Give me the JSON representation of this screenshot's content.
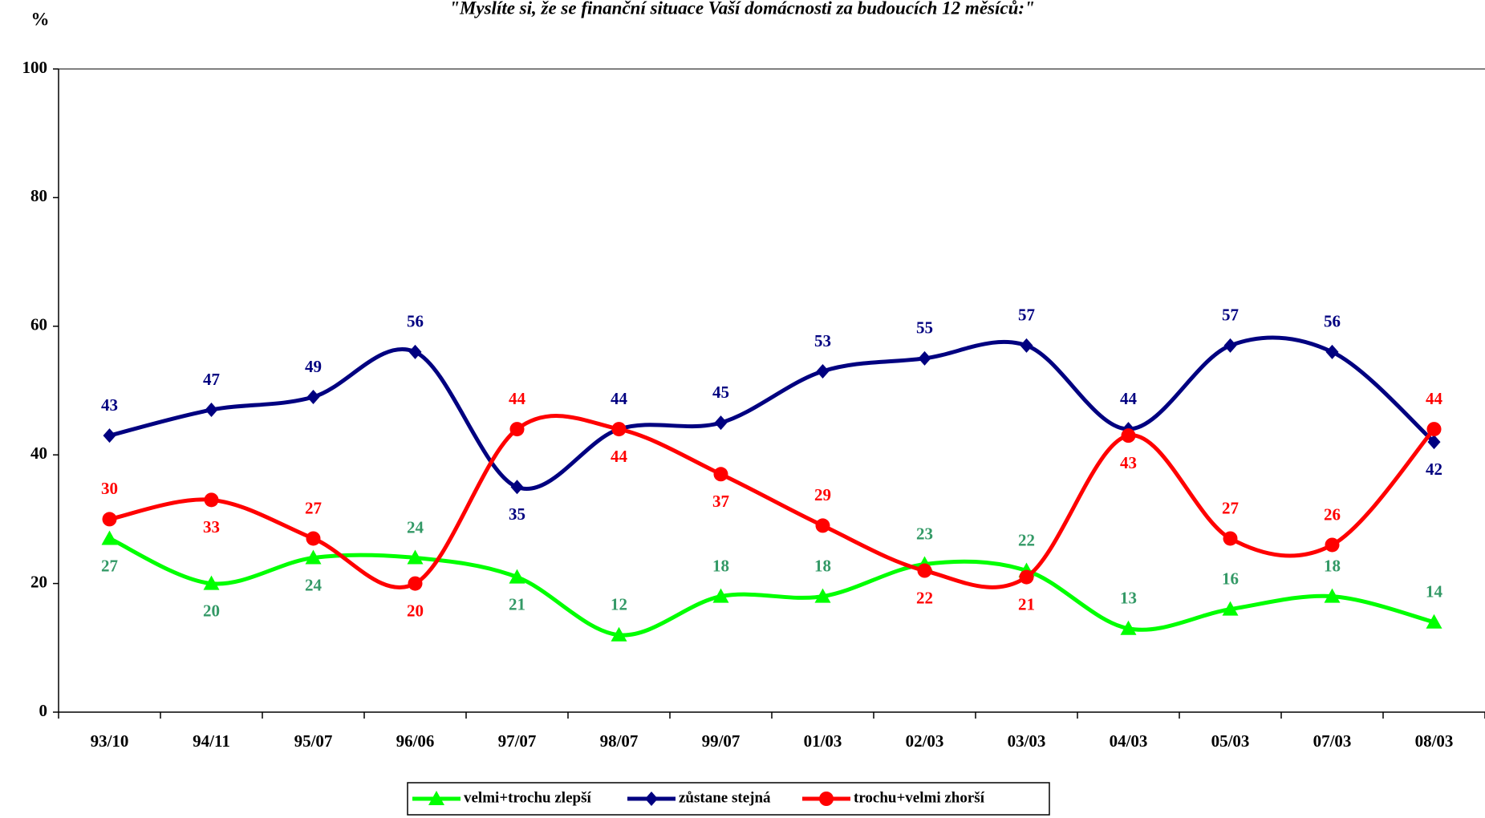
{
  "chart_data": {
    "type": "line",
    "title": "\"Myslíte si, že se finanční situace Vaší domácnosti za budoucích 12 měsíců:\"",
    "y_label": "%",
    "categories": [
      "93/10",
      "94/11",
      "95/07",
      "96/06",
      "97/07",
      "98/07",
      "99/07",
      "01/03",
      "02/03",
      "03/03",
      "04/03",
      "05/03",
      "07/03",
      "08/03"
    ],
    "series": [
      {
        "name": "velmi+trochu zlepší",
        "color": "#00ff00",
        "label_color": "#339966",
        "marker": "triangle",
        "values": [
          27,
          20,
          24,
          24,
          21,
          12,
          18,
          18,
          23,
          22,
          13,
          16,
          18,
          14
        ]
      },
      {
        "name": "zůstane stejná",
        "color": "#000080",
        "label_color": "#000080",
        "marker": "diamond",
        "values": [
          43,
          47,
          49,
          56,
          35,
          44,
          45,
          53,
          55,
          57,
          44,
          57,
          56,
          42
        ]
      },
      {
        "name": "trochu+velmi zhorší",
        "color": "#ff0000",
        "label_color": "#ff0000",
        "marker": "circle",
        "values": [
          30,
          33,
          27,
          20,
          44,
          44,
          37,
          29,
          22,
          21,
          43,
          27,
          26,
          44
        ]
      }
    ],
    "ylim": [
      0,
      100
    ],
    "yticks": [
      0,
      20,
      40,
      60,
      80,
      100
    ]
  }
}
